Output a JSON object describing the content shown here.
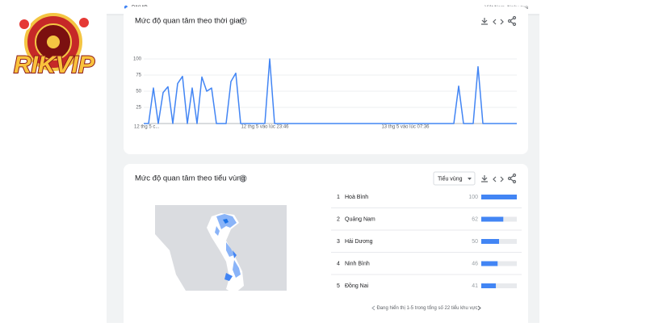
{
  "logo": {
    "text": "RIKVIP"
  },
  "header": {
    "term": "RIKVIP",
    "region": "Việt Nam, Ngày qua"
  },
  "interest_over_time": {
    "type": "line",
    "title": "Mức độ quan tâm theo thời gian",
    "color": "#4285f4",
    "ylim": [
      0,
      100
    ],
    "yticks": [
      25,
      50,
      75,
      100
    ],
    "grid": true,
    "categories": [
      "12 thg 5 c...",
      null,
      null,
      null,
      null,
      null,
      null,
      null,
      null,
      null,
      null,
      null,
      null,
      null,
      null,
      null,
      null,
      null,
      null,
      null,
      null,
      null,
      null,
      null,
      null,
      "12 thg 5 vào lúc 23:46",
      null,
      null,
      null,
      null,
      null,
      null,
      null,
      null,
      null,
      null,
      null,
      null,
      null,
      null,
      null,
      null,
      null,
      null,
      null,
      null,
      null,
      null,
      null,
      null,
      null,
      null,
      null,
      null,
      "13 thg 5 vào lúc 07:36",
      null,
      null,
      null,
      null,
      null,
      null,
      null,
      null,
      null,
      null,
      null,
      null,
      null,
      null,
      null,
      null,
      null,
      null,
      null,
      null,
      null,
      null,
      null
    ],
    "values": [
      0,
      0,
      55,
      0,
      48,
      57,
      0,
      62,
      73,
      0,
      55,
      0,
      72,
      50,
      55,
      0,
      0,
      0,
      65,
      78,
      0,
      0,
      0,
      0,
      0,
      0,
      100,
      0,
      0,
      0,
      0,
      0,
      0,
      0,
      0,
      0,
      0,
      0,
      0,
      0,
      0,
      0,
      0,
      0,
      0,
      0,
      0,
      0,
      0,
      0,
      0,
      0,
      0,
      0,
      0,
      0,
      0,
      0,
      0,
      0,
      0,
      0,
      0,
      0,
      0,
      58,
      0,
      0,
      0,
      88,
      0,
      0,
      0,
      0,
      0,
      0,
      0,
      0
    ]
  },
  "interest_by_region": {
    "title": "Mức độ quan tâm theo tiểu vùng",
    "dropdown": "Tiểu vùng",
    "rows": [
      {
        "rank": "1",
        "name": "Hoà Bình",
        "value": 100
      },
      {
        "rank": "2",
        "name": "Quảng Nam",
        "value": 62
      },
      {
        "rank": "3",
        "name": "Hải Dương",
        "value": 50
      },
      {
        "rank": "4",
        "name": "Ninh Bình",
        "value": 46
      },
      {
        "rank": "5",
        "name": "Đồng Nai",
        "value": 41
      }
    ],
    "footer": "Đang hiển thị 1-5 trong tổng số 22 tiểu khu vực"
  }
}
